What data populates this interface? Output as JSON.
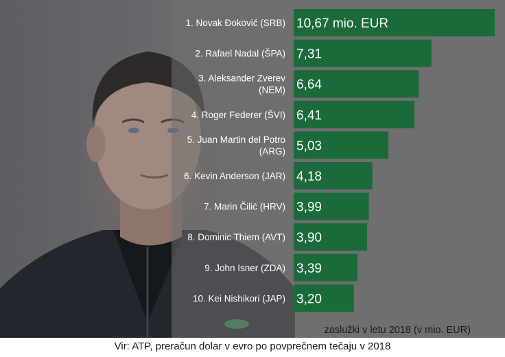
{
  "chart_data": {
    "type": "bar",
    "orientation": "horizontal",
    "categories": [
      "1. Novak Đoković (SRB)",
      "2. Rafael Nadal (ŠPA)",
      "3. Aleksander Zverev (NEM)",
      "4. Roger Federer (ŠVI)",
      "5. Juan Martin del Potro (ARG)",
      "6. Kevin Anderson (JAR)",
      "7. Marin Čilić (HRV)",
      "8. Dominic Thiem (AVT)",
      "9. John Isner (ZDA)",
      "10. Kei Nishikori (JAP)"
    ],
    "category_lines": [
      [
        "1. Novak Đoković (SRB)"
      ],
      [
        "2. Rafael Nadal (ŠPA)"
      ],
      [
        "3. Aleksander Zverev",
        "(NEM)"
      ],
      [
        "4. Roger Federer (ŠVI)"
      ],
      [
        "5. Juan Martin del Potro",
        "(ARG)"
      ],
      [
        "6. Kevin Anderson (JAR)"
      ],
      [
        "7. Marin Čilić (HRV)"
      ],
      [
        "8. Dominic Thiem (AVT)"
      ],
      [
        "9. John Isner (ZDA)"
      ],
      [
        "10. Kei Nishikori (JAP)"
      ]
    ],
    "values": [
      10.67,
      7.31,
      6.64,
      6.41,
      5.03,
      4.18,
      3.99,
      3.9,
      3.39,
      3.2
    ],
    "value_labels": [
      "10,67 mio. EUR",
      "7,31",
      "6,64",
      "6,41",
      "5,03",
      "4,18",
      "3,99",
      "3,90",
      "3,39",
      "3,20"
    ],
    "xlabel": "zaslužki v letu 2018 (v mio. EUR)",
    "xlim": [
      0,
      10.67
    ],
    "grid": false,
    "bar_color": "#1b6b3a"
  },
  "source_note": "Vir: ATP, preračun dolar v evro po povprečnem tečaju v 2018"
}
